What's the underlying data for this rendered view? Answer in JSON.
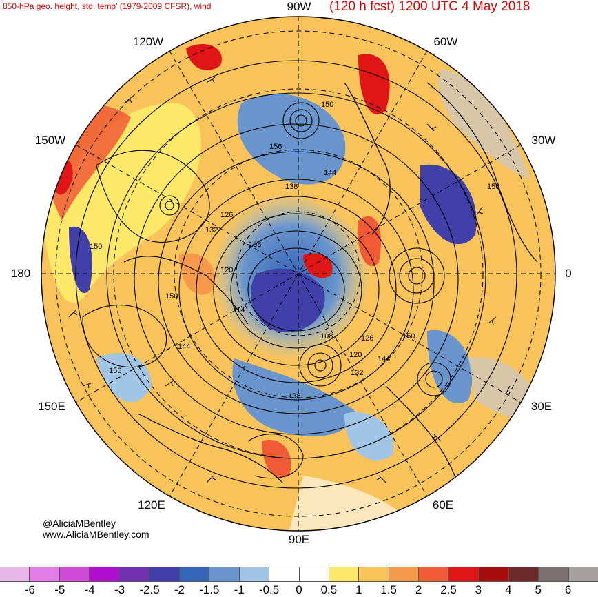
{
  "header": {
    "title_left": "850-hPa geo. height, std. temp' (1979-2009 CFSR), wind",
    "title_right": "(120 h fcst) 1200 UTC 4 May 2018"
  },
  "map": {
    "projection": "north-polar-stereographic",
    "longitude_labels": {
      "top": "90W",
      "top_right": "60W",
      "upper_right": "30W",
      "right": "0",
      "lower_right": "30E",
      "bottom_right": "60E",
      "bottom": "90E",
      "bottom_left": "120E",
      "lower_left": "150E",
      "left": "180",
      "upper_left": "150W",
      "top_left": "120W"
    },
    "contour_labels": [
      "150",
      "156",
      "144",
      "138",
      "126",
      "132",
      "108",
      "120",
      "150",
      "114",
      "144",
      "156",
      "108",
      "126",
      "120",
      "132",
      "138",
      "144",
      "150",
      "156",
      "150"
    ],
    "colors": {
      "land": "#c8c8c8",
      "coastline": "#000000",
      "grid": "#000000"
    }
  },
  "credits": {
    "handle": "@AliciaMBentley",
    "website": "www.AliciaMBentley.com"
  },
  "colorbar": {
    "colors": [
      "#e7b8e8",
      "#e27ee6",
      "#d04ad8",
      "#b00fd0",
      "#7030b0",
      "#4040a8",
      "#3565b8",
      "#6a95cc",
      "#a2c5e5",
      "#ffffff",
      "#ffffff",
      "#fde86a",
      "#f7c35a",
      "#f49a4a",
      "#f05a35",
      "#e01515",
      "#a50d0d",
      "#6e2a2a",
      "#7a7070",
      "#a8a0a0"
    ],
    "ticks": [
      "-6",
      "-5",
      "-4",
      "-3",
      "-2.5",
      "-2",
      "-1.5",
      "-1",
      "-0.5",
      "0",
      "0.5",
      "1",
      "1.5",
      "2",
      "2.5",
      "3",
      "4",
      "5",
      "6"
    ]
  }
}
